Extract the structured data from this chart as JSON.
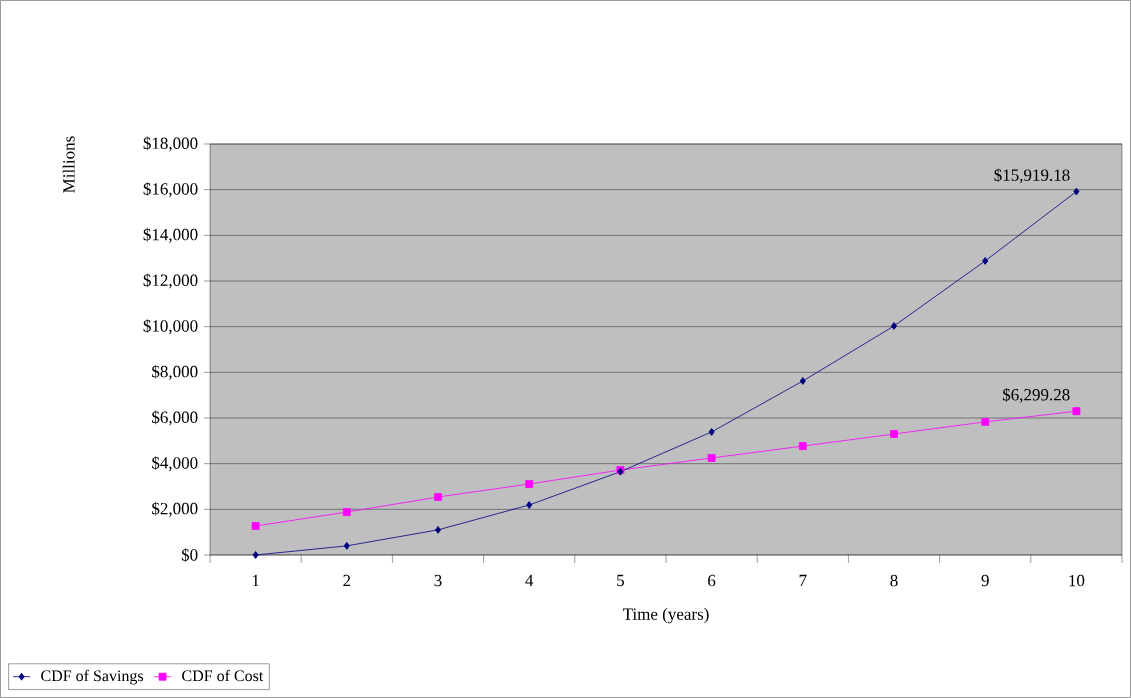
{
  "chart_data": {
    "type": "line",
    "xlabel": "Time (years)",
    "ylabel": "Millions",
    "categories": [
      "1",
      "2",
      "3",
      "4",
      "5",
      "6",
      "7",
      "8",
      "9",
      "10"
    ],
    "series": [
      {
        "name": "CDF of Savings",
        "color": "#000080",
        "marker": "diamond",
        "values": [
          0,
          400,
          1100,
          2190,
          3650,
          5390,
          7620,
          10030,
          12880,
          15919.18
        ]
      },
      {
        "name": "CDF of Cost",
        "color": "#ff00ff",
        "marker": "square",
        "values": [
          1270,
          1880,
          2540,
          3110,
          3720,
          4250,
          4770,
          5300,
          5830,
          6299.28
        ]
      }
    ],
    "ylim": [
      0,
      18000
    ],
    "yticks": [
      {
        "value": 0,
        "label": "$0"
      },
      {
        "value": 2000,
        "label": "$2,000"
      },
      {
        "value": 4000,
        "label": "$4,000"
      },
      {
        "value": 6000,
        "label": "$6,000"
      },
      {
        "value": 8000,
        "label": "$8,000"
      },
      {
        "value": 10000,
        "label": "$10,000"
      },
      {
        "value": 12000,
        "label": "$12,000"
      },
      {
        "value": 14000,
        "label": "$14,000"
      },
      {
        "value": 16000,
        "label": "$16,000"
      },
      {
        "value": 18000,
        "label": "$18,000"
      }
    ],
    "annotations": [
      {
        "text": "$15,919.18",
        "x": "10",
        "y": 15919.18
      },
      {
        "text": "$6,299.28",
        "x": "10",
        "y": 6299.28
      }
    ],
    "grid": "y",
    "legend": "bottom left",
    "line_style": "solid"
  }
}
